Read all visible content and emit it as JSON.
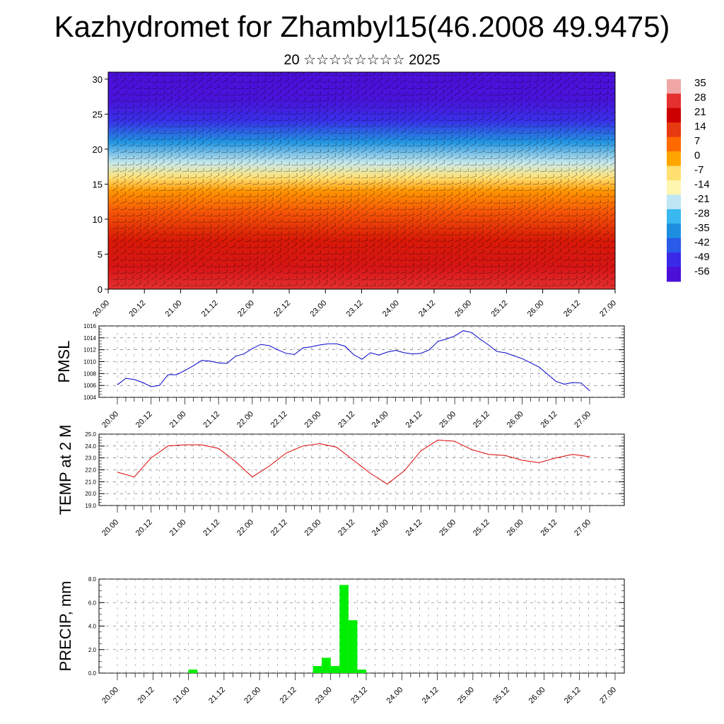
{
  "header": {
    "title": "Kazhydromet for Zhambyl15(46.2008 49.9475)",
    "subtitle": "20 ☆☆☆☆☆☆☆☆ 2025"
  },
  "time_ticks": [
    "20.00",
    "20.12",
    "21.00",
    "21.12",
    "22.00",
    "22.12",
    "23.00",
    "23.12",
    "24.00",
    "24.12",
    "25.00",
    "25.12",
    "26.00",
    "26.12",
    "27.00"
  ],
  "chart_data": [
    {
      "type": "heatmap",
      "title": "",
      "xlabel": "",
      "ylabel": "",
      "x_ticks": [
        "20.00",
        "20.12",
        "21.00",
        "21.12",
        "22.00",
        "22.12",
        "23.00",
        "23.12",
        "24.00",
        "24.12",
        "25.00",
        "25.12",
        "26.00",
        "26.12",
        "27.00"
      ],
      "y_ticks": [
        "0",
        "5",
        "10",
        "15",
        "20",
        "25",
        "30"
      ],
      "ylim": [
        0,
        31
      ],
      "description_of_values": "temperature field with wind barbs; colour scale in legend",
      "colorbar": {
        "labels": [
          "35",
          "28",
          "21",
          "14",
          "7",
          "0",
          "-7",
          "-14",
          "-21",
          "-28",
          "-35",
          "-42",
          "-49",
          "-56"
        ],
        "colors": [
          "#f2a7a7",
          "#e53030",
          "#cc0000",
          "#e83a10",
          "#ff6a00",
          "#ffa600",
          "#ffe070",
          "#fff6b0",
          "#bfe6f5",
          "#38b8ee",
          "#1e8fe0",
          "#2a5ae8",
          "#3a2ae8",
          "#4b0fd8"
        ]
      },
      "field": {
        "heights": [
          0,
          3,
          7,
          11,
          14,
          16,
          18,
          21,
          24,
          27,
          31
        ],
        "temps_by_height": [
          28,
          24,
          18,
          10,
          2,
          -8,
          -20,
          -34,
          -48,
          -55,
          -56
        ]
      }
    },
    {
      "type": "line",
      "title": "",
      "ylabel": "PMSL",
      "ylim": [
        1004,
        1016
      ],
      "y_ticks": [
        "1004",
        "1006",
        "1008",
        "1010",
        "1012",
        "1014",
        "1016"
      ],
      "x_ticks": [
        "20.00",
        "20.12",
        "21.00",
        "21.12",
        "22.00",
        "22.12",
        "23.00",
        "23.12",
        "24.00",
        "24.12",
        "25.00",
        "25.12",
        "26.00",
        "26.12",
        "27.00"
      ],
      "color": "#0000cc",
      "x": [
        0,
        1,
        2,
        3,
        4,
        5,
        6,
        7,
        8,
        9,
        10,
        11,
        12,
        13,
        14,
        15,
        16,
        17,
        18,
        19,
        20,
        21,
        22,
        23,
        24,
        25,
        26,
        27,
        28,
        29,
        30,
        31,
        32,
        33,
        34,
        35,
        36,
        37,
        38,
        39,
        40,
        41,
        42,
        43,
        44,
        45,
        46,
        47,
        48,
        49,
        50,
        51,
        52,
        53,
        54,
        55,
        56
      ],
      "values": [
        1006.1,
        1007.2,
        1007.0,
        1006.5,
        1005.8,
        1006.0,
        1007.8,
        1007.8,
        1008.5,
        1009.3,
        1010.2,
        1010.1,
        1009.8,
        1009.7,
        1010.9,
        1011.3,
        1012.2,
        1012.9,
        1012.7,
        1012.0,
        1011.4,
        1011.2,
        1012.3,
        1012.5,
        1012.8,
        1013.0,
        1013.0,
        1012.6,
        1011.2,
        1010.4,
        1011.5,
        1011.1,
        1011.6,
        1011.9,
        1011.5,
        1011.3,
        1011.4,
        1012.0,
        1013.4,
        1013.8,
        1014.3,
        1015.2,
        1014.9,
        1013.8,
        1012.8,
        1011.7,
        1011.5,
        1011.0,
        1010.5,
        1009.8,
        1009.1,
        1007.9,
        1006.7,
        1006.2,
        1006.5,
        1006.4,
        1005.1
      ]
    },
    {
      "type": "line",
      "title": "",
      "ylabel": "TEMP at 2 M",
      "ylim": [
        19.0,
        25.0
      ],
      "y_ticks": [
        "19.0",
        "20.0",
        "21.0",
        "22.0",
        "23.0",
        "24.0",
        "25.0"
      ],
      "x_ticks": [
        "20.00",
        "20.12",
        "21.00",
        "21.12",
        "22.00",
        "22.12",
        "23.00",
        "23.12",
        "24.00",
        "24.12",
        "25.00",
        "25.12",
        "26.00",
        "26.12",
        "27.00"
      ],
      "color": "#dd0000",
      "x": [
        0,
        2,
        4,
        6,
        8,
        10,
        12,
        14,
        16,
        18,
        20,
        22,
        24,
        26,
        28,
        30,
        32,
        34,
        36,
        38,
        40,
        42,
        44,
        46,
        48,
        50,
        52,
        54,
        56
      ],
      "values": [
        21.8,
        21.4,
        23.0,
        24.0,
        24.1,
        24.1,
        23.8,
        22.7,
        21.4,
        22.3,
        23.4,
        24.0,
        24.2,
        23.9,
        22.8,
        21.7,
        20.8,
        21.9,
        23.6,
        24.5,
        24.4,
        23.7,
        23.3,
        23.2,
        22.8,
        22.6,
        23.0,
        23.3,
        23.1
      ]
    },
    {
      "type": "bar",
      "title": "",
      "ylabel": "PRECIP, mm",
      "ylim": [
        0,
        8
      ],
      "y_ticks": [
        "0.0",
        "2.0",
        "4.0",
        "6.0",
        "8.0"
      ],
      "x_ticks": [
        "20.00",
        "20.12",
        "21.00",
        "21.12",
        "22.00",
        "22.12",
        "23.00",
        "23.12",
        "24.00",
        "24.12",
        "25.00",
        "25.12",
        "26.00",
        "26.12",
        "27.00"
      ],
      "color": "#00ee00",
      "bins": [
        8.5,
        22.5,
        23.5,
        24.5,
        25.5,
        26.5,
        27.5,
        28.5
      ],
      "values": [
        0.3,
        0.6,
        1.3,
        0.6,
        7.5,
        4.5,
        0.3,
        0.0
      ]
    }
  ]
}
